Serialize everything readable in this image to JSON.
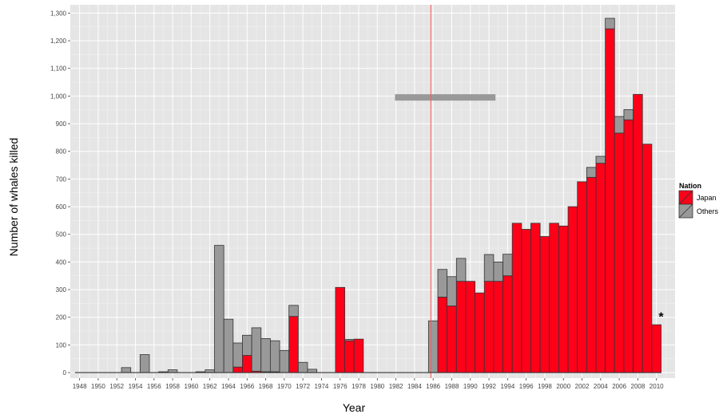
{
  "chart_data": {
    "type": "bar",
    "stacked": true,
    "title": "",
    "xlabel": "Year",
    "ylabel": "Number of whales killed",
    "xlim": [
      1947,
      2012
    ],
    "ylim": [
      -20,
      1330
    ],
    "y_ticks": [
      0,
      100,
      200,
      300,
      400,
      500,
      600,
      700,
      800,
      900,
      1000,
      1100,
      1200,
      1300
    ],
    "y_tick_labels": [
      "0",
      "100",
      "200",
      "300",
      "400",
      "500",
      "600",
      "700",
      "800",
      "900",
      "1,000",
      "1,100",
      "1,200",
      "1,300"
    ],
    "x_ticks": [
      1948,
      1950,
      1952,
      1954,
      1956,
      1958,
      1960,
      1962,
      1964,
      1966,
      1968,
      1970,
      1972,
      1974,
      1976,
      1978,
      1980,
      1982,
      1984,
      1986,
      1988,
      1990,
      1992,
      1994,
      1996,
      1998,
      2000,
      2002,
      2004,
      2006,
      2008,
      2010
    ],
    "grid": true,
    "legend": {
      "title": "Nation",
      "position": "right",
      "entries": [
        {
          "label": "Japan",
          "color": "#ff0019"
        },
        {
          "label": "Others",
          "color": "#999999"
        }
      ]
    },
    "years": [
      1948,
      1949,
      1950,
      1951,
      1952,
      1953,
      1954,
      1955,
      1956,
      1957,
      1958,
      1959,
      1960,
      1961,
      1962,
      1963,
      1964,
      1965,
      1966,
      1967,
      1968,
      1969,
      1970,
      1971,
      1972,
      1973,
      1974,
      1975,
      1976,
      1977,
      1978,
      1979,
      1980,
      1981,
      1982,
      1983,
      1984,
      1985,
      1986,
      1987,
      1988,
      1989,
      1990,
      1991,
      1992,
      1993,
      1994,
      1995,
      1996,
      1997,
      1998,
      1999,
      2000,
      2001,
      2002,
      2003,
      2004,
      2005,
      2006,
      2007,
      2008,
      2009,
      2010
    ],
    "series": [
      {
        "name": "Japan",
        "color": "#ff0019",
        "values": [
          0,
          0,
          0,
          0,
          0,
          0,
          0,
          0,
          0,
          0,
          0,
          0,
          0,
          0,
          0,
          0,
          0,
          20,
          62,
          5,
          3,
          3,
          0,
          203,
          0,
          0,
          0,
          0,
          308,
          115,
          121,
          0,
          0,
          0,
          0,
          0,
          0,
          0,
          0,
          273,
          241,
          330,
          330,
          288,
          330,
          330,
          350,
          540,
          518,
          540,
          492,
          540,
          530,
          600,
          690,
          706,
          757,
          1243,
          866,
          914,
          1006,
          826,
          173
        ]
      },
      {
        "name": "Others",
        "color": "#999999",
        "values": [
          0,
          0,
          0,
          0,
          0,
          18,
          0,
          65,
          0,
          3,
          10,
          0,
          0,
          3,
          10,
          460,
          193,
          87,
          73,
          157,
          120,
          112,
          80,
          40,
          37,
          12,
          0,
          0,
          0,
          5,
          0,
          0,
          0,
          0,
          0,
          0,
          0,
          0,
          187,
          100,
          106,
          83,
          0,
          0,
          97,
          70,
          78,
          0,
          0,
          0,
          0,
          0,
          0,
          0,
          0,
          36,
          25,
          38,
          60,
          37,
          0,
          0,
          0
        ]
      }
    ],
    "reference_line": {
      "x": 1985.75,
      "color": "#ff5555"
    },
    "annotations": [
      {
        "label": "*",
        "x": 2010.5,
        "y": 210
      }
    ],
    "range_bars": [
      {
        "x_start": 1981.9,
        "x_end": 1992.7,
        "y": 995,
        "color": "#999999"
      }
    ]
  }
}
